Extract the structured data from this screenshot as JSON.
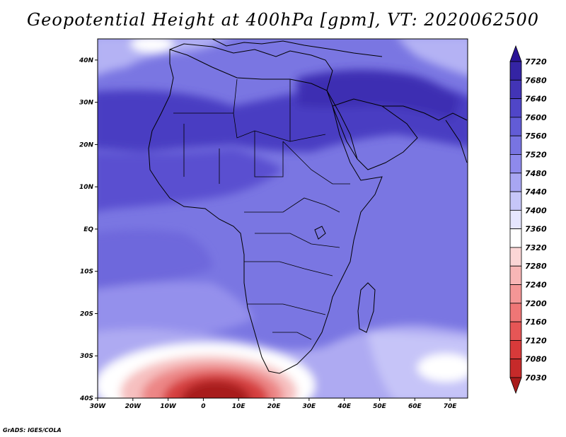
{
  "title": "Geopotential Height at 400hPa [gpm], VT: 2020062500",
  "footer": "GrADS: IGES/COLA",
  "map": {
    "lon_range": [
      -30,
      75
    ],
    "lat_range": [
      -40,
      45
    ],
    "lon_ticks": [
      "30W",
      "20W",
      "10W",
      "0",
      "10E",
      "20E",
      "30E",
      "40E",
      "50E",
      "60E",
      "70E"
    ],
    "lat_ticks": [
      "40S",
      "30S",
      "20S",
      "10S",
      "EQ",
      "10N",
      "20N",
      "30N",
      "40N"
    ]
  },
  "colorbar": {
    "labels": [
      "7030",
      "7080",
      "7120",
      "7160",
      "7200",
      "7240",
      "7280",
      "7320",
      "7360",
      "7400",
      "7440",
      "7480",
      "7520",
      "7560",
      "7600",
      "7640",
      "7680",
      "7720"
    ],
    "colors": [
      "#a81c1c",
      "#c62a2a",
      "#d83a3a",
      "#e65656",
      "#ef7676",
      "#f49696",
      "#f8b6b6",
      "#fbd6d6",
      "#ffffff",
      "#e6e6ff",
      "#c6c6f8",
      "#a8a6f2",
      "#8e8aec",
      "#7874e2",
      "#625cd6",
      "#5046c8",
      "#4234b6",
      "#3424a4",
      "#2a1496"
    ]
  }
}
